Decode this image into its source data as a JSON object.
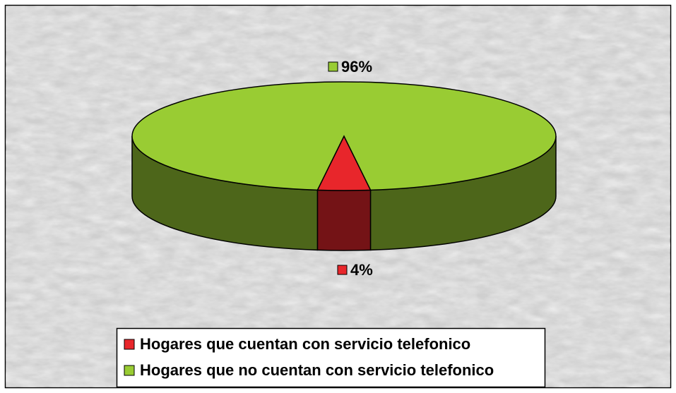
{
  "chart_data": {
    "type": "pie3d",
    "categories": [
      "Hogares que cuentan con servicio telefonico",
      "Hogares que no cuentan con servicio telefonico"
    ],
    "values": [
      4,
      96
    ],
    "value_labels": [
      "4%",
      "96%"
    ],
    "colors": [
      "#e8262b",
      "#99cc33"
    ],
    "legend": "bottom"
  }
}
